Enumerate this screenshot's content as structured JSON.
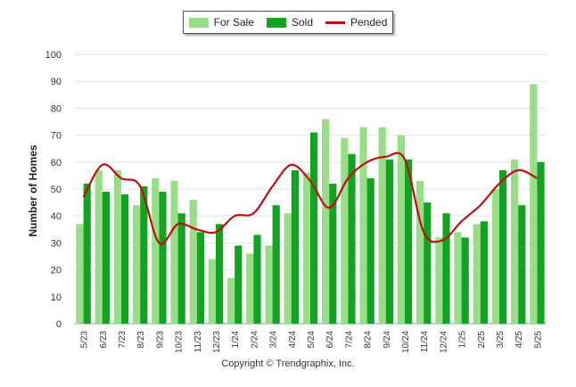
{
  "chart_data": {
    "type": "bar",
    "ylabel": "Number of Homes",
    "ylim": [
      0,
      100
    ],
    "yticks": [
      0,
      10,
      20,
      30,
      40,
      50,
      60,
      70,
      80,
      90,
      100
    ],
    "grid": true,
    "legend_position": "top-center",
    "categories": [
      "5/23",
      "6/23",
      "7/23",
      "8/23",
      "9/23",
      "10/23",
      "11/23",
      "12/23",
      "1/24",
      "2/24",
      "3/24",
      "4/24",
      "5/24",
      "6/24",
      "7/24",
      "8/24",
      "9/24",
      "10/24",
      "11/24",
      "12/24",
      "1/25",
      "2/25",
      "3/25",
      "4/25",
      "5/25"
    ],
    "series": [
      {
        "name": "For Sale",
        "kind": "bar",
        "color": "#99dd88",
        "values": [
          37,
          57,
          57,
          44,
          54,
          53,
          46,
          24,
          17,
          26,
          29,
          41,
          56,
          76,
          69,
          73,
          73,
          70,
          53,
          32,
          34,
          37,
          50,
          61,
          89
        ]
      },
      {
        "name": "Sold",
        "kind": "bar",
        "color": "#13a323",
        "values": [
          52,
          49,
          48,
          51,
          49,
          41,
          34,
          37,
          29,
          33,
          44,
          57,
          71,
          52,
          63,
          54,
          61,
          61,
          45,
          41,
          32,
          38,
          57,
          44,
          60
        ]
      },
      {
        "name": "Pended",
        "kind": "line",
        "color": "#bb1111",
        "values": [
          47,
          59,
          54,
          51,
          30,
          37,
          35,
          34,
          40,
          41,
          51,
          59,
          53,
          43,
          54,
          60,
          62,
          61,
          34,
          31,
          38,
          44,
          52,
          57,
          54
        ]
      }
    ],
    "copyright": "Copyright © Trendgraphix, Inc."
  }
}
